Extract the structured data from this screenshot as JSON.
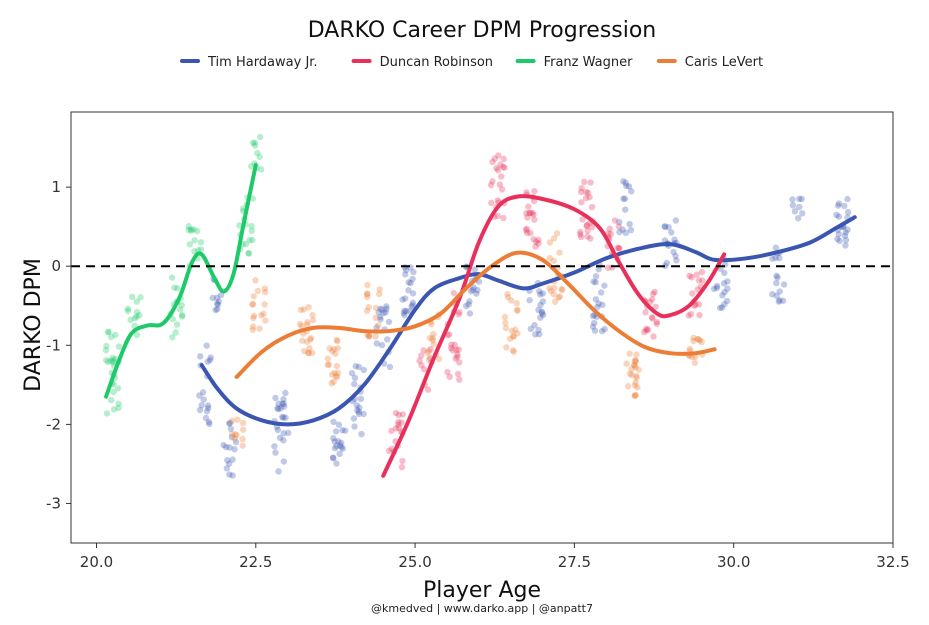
{
  "chart_data": {
    "type": "scatter",
    "title": "DARKO Career DPM Progression",
    "xlabel": "Player Age",
    "ylabel": "DARKO DPM",
    "caption": "@kmedved | www.darko.app | @anpatt7",
    "xlim": [
      19.6,
      32.5
    ],
    "ylim": [
      -3.5,
      1.95
    ],
    "x_ticks": [
      20.0,
      22.5,
      25.0,
      27.5,
      30.0,
      32.5
    ],
    "x_tick_labels": [
      "20.0",
      "22.5",
      "25.0",
      "27.5",
      "30.0",
      "32.5"
    ],
    "y_ticks": [
      -3,
      -2,
      -1,
      0,
      1
    ],
    "y_tick_labels": [
      "-3",
      "-2",
      "-1",
      "0",
      "1"
    ],
    "reference_line": 0,
    "grid": false,
    "legend_position": "top",
    "series": [
      {
        "name": "Tim Hardaway Jr.",
        "color": "#3b56b0",
        "trend": [
          [
            21.65,
            -1.25
          ],
          [
            21.9,
            -1.55
          ],
          [
            22.2,
            -1.8
          ],
          [
            22.6,
            -1.95
          ],
          [
            23.0,
            -2.0
          ],
          [
            23.4,
            -1.95
          ],
          [
            23.8,
            -1.8
          ],
          [
            24.2,
            -1.5
          ],
          [
            24.6,
            -1.05
          ],
          [
            25.0,
            -0.55
          ],
          [
            25.3,
            -0.28
          ],
          [
            25.7,
            -0.15
          ],
          [
            26.0,
            -0.1
          ],
          [
            26.3,
            -0.18
          ],
          [
            26.7,
            -0.28
          ],
          [
            27.0,
            -0.22
          ],
          [
            27.5,
            -0.08
          ],
          [
            28.0,
            0.1
          ],
          [
            28.5,
            0.22
          ],
          [
            29.0,
            0.28
          ],
          [
            29.4,
            0.18
          ],
          [
            29.7,
            0.08
          ],
          [
            30.2,
            0.1
          ],
          [
            30.7,
            0.18
          ],
          [
            31.2,
            0.3
          ],
          [
            31.6,
            0.48
          ],
          [
            31.9,
            0.62
          ]
        ],
        "clusters": [
          {
            "x": 21.7,
            "y_center": -1.6,
            "spread": 0.6,
            "count": 18
          },
          {
            "x": 21.85,
            "y_center": -0.35,
            "spread": 0.25,
            "count": 10
          },
          {
            "x": 22.1,
            "y_center": -2.3,
            "spread": 0.35,
            "count": 15
          },
          {
            "x": 22.9,
            "y_center": -2.1,
            "spread": 0.5,
            "count": 24
          },
          {
            "x": 23.8,
            "y_center": -2.2,
            "spread": 0.3,
            "count": 18
          },
          {
            "x": 24.1,
            "y_center": -1.7,
            "spread": 0.45,
            "count": 20
          },
          {
            "x": 24.5,
            "y_center": -0.9,
            "spread": 0.4,
            "count": 18
          },
          {
            "x": 24.9,
            "y_center": -0.3,
            "spread": 0.35,
            "count": 20
          },
          {
            "x": 25.9,
            "y_center": -0.3,
            "spread": 0.3,
            "count": 16
          },
          {
            "x": 26.9,
            "y_center": -0.55,
            "spread": 0.35,
            "count": 18
          },
          {
            "x": 27.9,
            "y_center": -0.4,
            "spread": 0.5,
            "count": 20
          },
          {
            "x": 28.3,
            "y_center": 0.75,
            "spread": 0.35,
            "count": 14
          },
          {
            "x": 29.0,
            "y_center": 0.3,
            "spread": 0.3,
            "count": 18
          },
          {
            "x": 29.8,
            "y_center": -0.2,
            "spread": 0.35,
            "count": 16
          },
          {
            "x": 30.7,
            "y_center": -0.1,
            "spread": 0.35,
            "count": 16
          },
          {
            "x": 31.0,
            "y_center": 0.75,
            "spread": 0.15,
            "count": 8
          },
          {
            "x": 31.7,
            "y_center": 0.55,
            "spread": 0.3,
            "count": 20
          }
        ]
      },
      {
        "name": "Duncan Robinson",
        "color": "#e8315a",
        "trend": [
          [
            24.5,
            -2.65
          ],
          [
            24.9,
            -1.95
          ],
          [
            25.3,
            -1.15
          ],
          [
            25.7,
            -0.4
          ],
          [
            26.0,
            0.3
          ],
          [
            26.3,
            0.75
          ],
          [
            26.6,
            0.88
          ],
          [
            27.0,
            0.85
          ],
          [
            27.5,
            0.72
          ],
          [
            27.9,
            0.48
          ],
          [
            28.2,
            0.05
          ],
          [
            28.5,
            -0.35
          ],
          [
            28.8,
            -0.6
          ],
          [
            29.0,
            -0.62
          ],
          [
            29.3,
            -0.5
          ],
          [
            29.6,
            -0.2
          ],
          [
            29.85,
            0.15
          ]
        ],
        "clusters": [
          {
            "x": 24.7,
            "y_center": -2.2,
            "spread": 0.35,
            "count": 18
          },
          {
            "x": 25.15,
            "y_center": -1.3,
            "spread": 0.3,
            "count": 10
          },
          {
            "x": 25.6,
            "y_center": -0.9,
            "spread": 0.6,
            "count": 22
          },
          {
            "x": 26.3,
            "y_center": 1.05,
            "spread": 0.45,
            "count": 22
          },
          {
            "x": 26.85,
            "y_center": 0.6,
            "spread": 0.4,
            "count": 22
          },
          {
            "x": 27.7,
            "y_center": 0.75,
            "spread": 0.4,
            "count": 22
          },
          {
            "x": 28.1,
            "y_center": 0.3,
            "spread": 0.35,
            "count": 16
          },
          {
            "x": 28.7,
            "y_center": -0.6,
            "spread": 0.3,
            "count": 18
          },
          {
            "x": 29.4,
            "y_center": -0.35,
            "spread": 0.3,
            "count": 16
          }
        ]
      },
      {
        "name": "Franz Wagner",
        "color": "#1ec96a",
        "trend": [
          [
            20.15,
            -1.65
          ],
          [
            20.35,
            -1.2
          ],
          [
            20.55,
            -0.85
          ],
          [
            20.8,
            -0.75
          ],
          [
            21.05,
            -0.72
          ],
          [
            21.3,
            -0.4
          ],
          [
            21.5,
            0.05
          ],
          [
            21.65,
            0.15
          ],
          [
            21.85,
            -0.15
          ],
          [
            22.0,
            -0.32
          ],
          [
            22.15,
            -0.1
          ],
          [
            22.3,
            0.5
          ],
          [
            22.5,
            1.28
          ]
        ],
        "clusters": [
          {
            "x": 20.25,
            "y_center": -1.35,
            "spread": 0.55,
            "count": 28
          },
          {
            "x": 20.6,
            "y_center": -0.6,
            "spread": 0.3,
            "count": 12
          },
          {
            "x": 21.25,
            "y_center": -0.5,
            "spread": 0.4,
            "count": 16
          },
          {
            "x": 21.55,
            "y_center": 0.25,
            "spread": 0.3,
            "count": 14
          },
          {
            "x": 22.35,
            "y_center": 0.5,
            "spread": 0.4,
            "count": 18
          },
          {
            "x": 22.5,
            "y_center": 1.45,
            "spread": 0.25,
            "count": 10
          }
        ]
      },
      {
        "name": "Caris LeVert",
        "color": "#ec7d36",
        "trend": [
          [
            22.2,
            -1.4
          ],
          [
            22.6,
            -1.08
          ],
          [
            23.0,
            -0.88
          ],
          [
            23.4,
            -0.78
          ],
          [
            23.8,
            -0.78
          ],
          [
            24.2,
            -0.82
          ],
          [
            24.6,
            -0.82
          ],
          [
            25.0,
            -0.76
          ],
          [
            25.4,
            -0.6
          ],
          [
            25.8,
            -0.28
          ],
          [
            26.2,
            0.0
          ],
          [
            26.6,
            0.17
          ],
          [
            27.0,
            0.08
          ],
          [
            27.4,
            -0.22
          ],
          [
            27.8,
            -0.55
          ],
          [
            28.2,
            -0.82
          ],
          [
            28.6,
            -1.02
          ],
          [
            29.0,
            -1.1
          ],
          [
            29.4,
            -1.1
          ],
          [
            29.7,
            -1.05
          ]
        ],
        "clusters": [
          {
            "x": 22.2,
            "y_center": -2.1,
            "spread": 0.2,
            "count": 10
          },
          {
            "x": 22.55,
            "y_center": -0.5,
            "spread": 0.35,
            "count": 16
          },
          {
            "x": 23.3,
            "y_center": -0.8,
            "spread": 0.3,
            "count": 20
          },
          {
            "x": 23.7,
            "y_center": -1.2,
            "spread": 0.3,
            "count": 18
          },
          {
            "x": 24.35,
            "y_center": -0.55,
            "spread": 0.35,
            "count": 16
          },
          {
            "x": 25.3,
            "y_center": -0.9,
            "spread": 0.3,
            "count": 14
          },
          {
            "x": 26.5,
            "y_center": -0.75,
            "spread": 0.4,
            "count": 18
          },
          {
            "x": 27.2,
            "y_center": 0.0,
            "spread": 0.45,
            "count": 20
          },
          {
            "x": 28.4,
            "y_center": -1.35,
            "spread": 0.3,
            "count": 22
          },
          {
            "x": 29.4,
            "y_center": -1.05,
            "spread": 0.2,
            "count": 14
          }
        ]
      }
    ]
  }
}
